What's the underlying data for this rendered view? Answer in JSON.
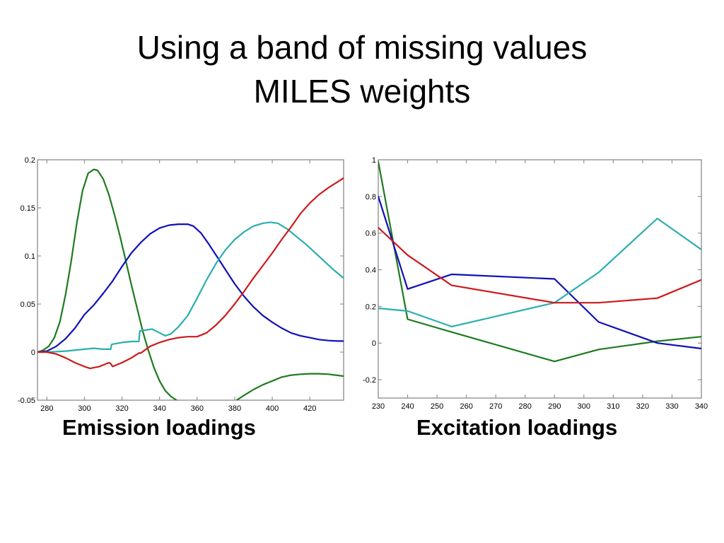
{
  "slide": {
    "title_line1": "Using a band of missing values",
    "title_line2": "MILES weights"
  },
  "chart_data": [
    {
      "type": "line",
      "title": "Emission loadings",
      "xlabel": "",
      "ylabel": "",
      "xlim": [
        275,
        438
      ],
      "ylim": [
        -0.05,
        0.2
      ],
      "xticks": [
        280,
        300,
        320,
        340,
        360,
        380,
        400,
        420
      ],
      "yticks": [
        -0.05,
        0,
        0.05,
        0.1,
        0.15,
        0.2
      ],
      "ytick_labels": [
        "-0.05",
        "0",
        "0.05",
        "0.1",
        "0.15",
        "0.2"
      ],
      "grid": false,
      "legend": "none",
      "series": [
        {
          "name": "component-green",
          "color": "#1e7a1e",
          "x": [
            275,
            278,
            281,
            284,
            287,
            290,
            293,
            296,
            299,
            302,
            305,
            307,
            310,
            313,
            316,
            319,
            322,
            325,
            328,
            331,
            334,
            337,
            340,
            343,
            346,
            349,
            352
          ],
          "y": [
            0,
            0.002,
            0.006,
            0.015,
            0.032,
            0.06,
            0.095,
            0.135,
            0.168,
            0.186,
            0.19,
            0.189,
            0.18,
            0.164,
            0.143,
            0.12,
            0.095,
            0.07,
            0.046,
            0.022,
            0.002,
            -0.016,
            -0.03,
            -0.04,
            -0.046,
            -0.05,
            -0.053
          ],
          "x2": [
            381,
            385,
            390,
            395,
            400,
            405,
            410,
            415,
            420,
            425,
            430,
            438
          ],
          "y2": [
            -0.05,
            -0.045,
            -0.039,
            -0.034,
            -0.03,
            -0.026,
            -0.024,
            -0.023,
            -0.0225,
            -0.0225,
            -0.023,
            -0.025
          ]
        },
        {
          "name": "component-blue",
          "color": "#1010b8",
          "x": [
            275,
            280,
            285,
            290,
            295,
            300,
            305,
            310,
            315,
            320,
            325,
            330,
            335,
            340,
            345,
            350,
            355,
            358,
            362,
            366,
            370,
            375,
            380,
            385,
            390,
            395,
            400,
            405,
            410,
            415,
            420,
            425,
            430,
            435,
            438
          ],
          "y": [
            0,
            0.001,
            0.006,
            0.014,
            0.025,
            0.039,
            0.049,
            0.061,
            0.074,
            0.089,
            0.103,
            0.114,
            0.123,
            0.129,
            0.132,
            0.133,
            0.133,
            0.131,
            0.124,
            0.113,
            0.101,
            0.086,
            0.071,
            0.058,
            0.047,
            0.038,
            0.031,
            0.025,
            0.02,
            0.017,
            0.015,
            0.013,
            0.012,
            0.0115,
            0.0115
          ]
        },
        {
          "name": "component-cyan",
          "color": "#2aaeae",
          "x": [
            275,
            280,
            290,
            300,
            305,
            310,
            314,
            314.5,
            320,
            325,
            329,
            329.5,
            333,
            336,
            340,
            343,
            346,
            350,
            355,
            360,
            365,
            370,
            375,
            380,
            385,
            390,
            395,
            399,
            403,
            408,
            413,
            418,
            423,
            428,
            433,
            438
          ],
          "y": [
            0,
            0,
            0.001,
            0.003,
            0.004,
            0.003,
            0.003,
            0.008,
            0.01,
            0.011,
            0.011,
            0.022,
            0.023,
            0.024,
            0.02,
            0.017,
            0.019,
            0.026,
            0.038,
            0.056,
            0.075,
            0.092,
            0.106,
            0.117,
            0.125,
            0.131,
            0.134,
            0.135,
            0.134,
            0.128,
            0.12,
            0.112,
            0.103,
            0.094,
            0.085,
            0.077
          ]
        },
        {
          "name": "component-red",
          "color": "#cc1a1a",
          "x": [
            275,
            280,
            285,
            290,
            295,
            300,
            303,
            308,
            313,
            314,
            315,
            320,
            325,
            329,
            330,
            335,
            340,
            345,
            350,
            355,
            360,
            365,
            370,
            375,
            380,
            385,
            390,
            395,
            400,
            405,
            410,
            415,
            420,
            425,
            430,
            438
          ],
          "y": [
            0,
            0,
            -0.002,
            -0.006,
            -0.011,
            -0.015,
            -0.017,
            -0.015,
            -0.011,
            -0.012,
            -0.015,
            -0.011,
            -0.006,
            -0.001,
            -0.001,
            0.006,
            0.01,
            0.013,
            0.015,
            0.016,
            0.016,
            0.02,
            0.028,
            0.038,
            0.05,
            0.063,
            0.077,
            0.09,
            0.103,
            0.117,
            0.13,
            0.144,
            0.155,
            0.164,
            0.171,
            0.181
          ]
        }
      ]
    },
    {
      "type": "line",
      "title": "Excitation loadings",
      "xlabel": "",
      "ylabel": "",
      "xlim": [
        230,
        340
      ],
      "ylim": [
        -0.3,
        1
      ],
      "xticks": [
        230,
        240,
        250,
        260,
        270,
        280,
        290,
        300,
        310,
        320,
        330,
        340
      ],
      "yticks": [
        -0.2,
        0,
        0.2,
        0.4,
        0.6,
        0.8,
        1
      ],
      "ytick_labels": [
        "-0.2",
        "0",
        "0.2",
        "0.4",
        "0.6",
        "0.8",
        "1"
      ],
      "grid": false,
      "legend": "none",
      "series": [
        {
          "name": "component-green",
          "color": "#1e7a1e",
          "x": [
            230,
            240,
            255,
            290,
            305,
            325,
            340
          ],
          "y": [
            0.99,
            0.13,
            0.06,
            -0.1,
            -0.035,
            0.01,
            0.035
          ]
        },
        {
          "name": "component-blue",
          "color": "#1010b8",
          "x": [
            230,
            240,
            255,
            290,
            305,
            325,
            340
          ],
          "y": [
            0.8,
            0.295,
            0.375,
            0.35,
            0.115,
            0.0,
            -0.03
          ]
        },
        {
          "name": "component-cyan",
          "color": "#2aaeae",
          "x": [
            230,
            240,
            255,
            290,
            305,
            325,
            340
          ],
          "y": [
            0.19,
            0.175,
            0.09,
            0.22,
            0.385,
            0.68,
            0.51
          ]
        },
        {
          "name": "component-red",
          "color": "#cc1a1a",
          "x": [
            230,
            240,
            255,
            290,
            305,
            325,
            340
          ],
          "y": [
            0.63,
            0.48,
            0.315,
            0.22,
            0.22,
            0.245,
            0.345
          ]
        }
      ]
    }
  ]
}
